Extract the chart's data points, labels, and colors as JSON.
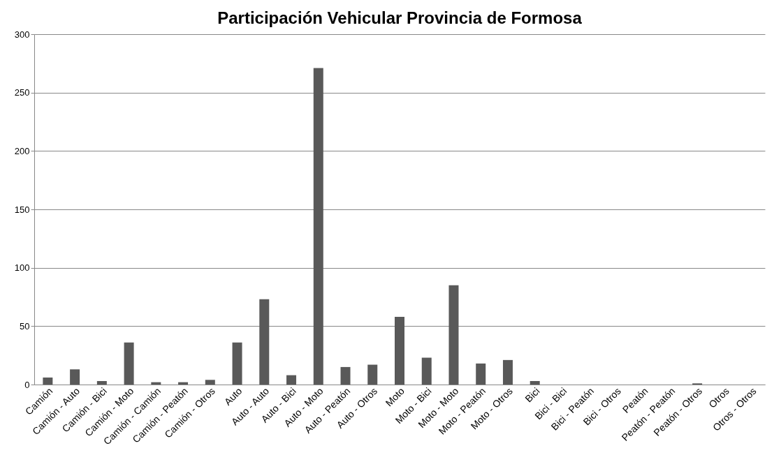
{
  "chart_data": {
    "type": "bar",
    "title": "Participación Vehicular Provincia de Formosa",
    "categories": [
      "Camión",
      "Camión - Auto",
      "Camión - Bici",
      "Camión - Moto",
      "Camión - Camión",
      "Camión - Peatón",
      "Camión - Otros",
      "Auto",
      "Auto - Auto",
      "Auto - Bici",
      "Auto - Moto",
      "Auto - Peatón",
      "Auto - Otros",
      "Moto",
      "Moto - Bici",
      "Moto - Moto",
      "Moto - Peatón",
      "Moto - Otros",
      "Bici",
      "Bici - Bici",
      "Bici - Peatón",
      "Bici - Otros",
      "Peatón",
      "Peatón - Peatón",
      "Peatón - Otros",
      "Otros",
      "Otros - Otros"
    ],
    "values": [
      6,
      13,
      3,
      36,
      2,
      2,
      4,
      36,
      73,
      8,
      271,
      15,
      17,
      58,
      23,
      85,
      18,
      21,
      3,
      0,
      0,
      0,
      0,
      0,
      1,
      0,
      0
    ],
    "color": "#595959",
    "ylim": [
      0,
      300
    ],
    "yticks": [
      0,
      50,
      100,
      150,
      200,
      250,
      300
    ],
    "grid": "y"
  }
}
